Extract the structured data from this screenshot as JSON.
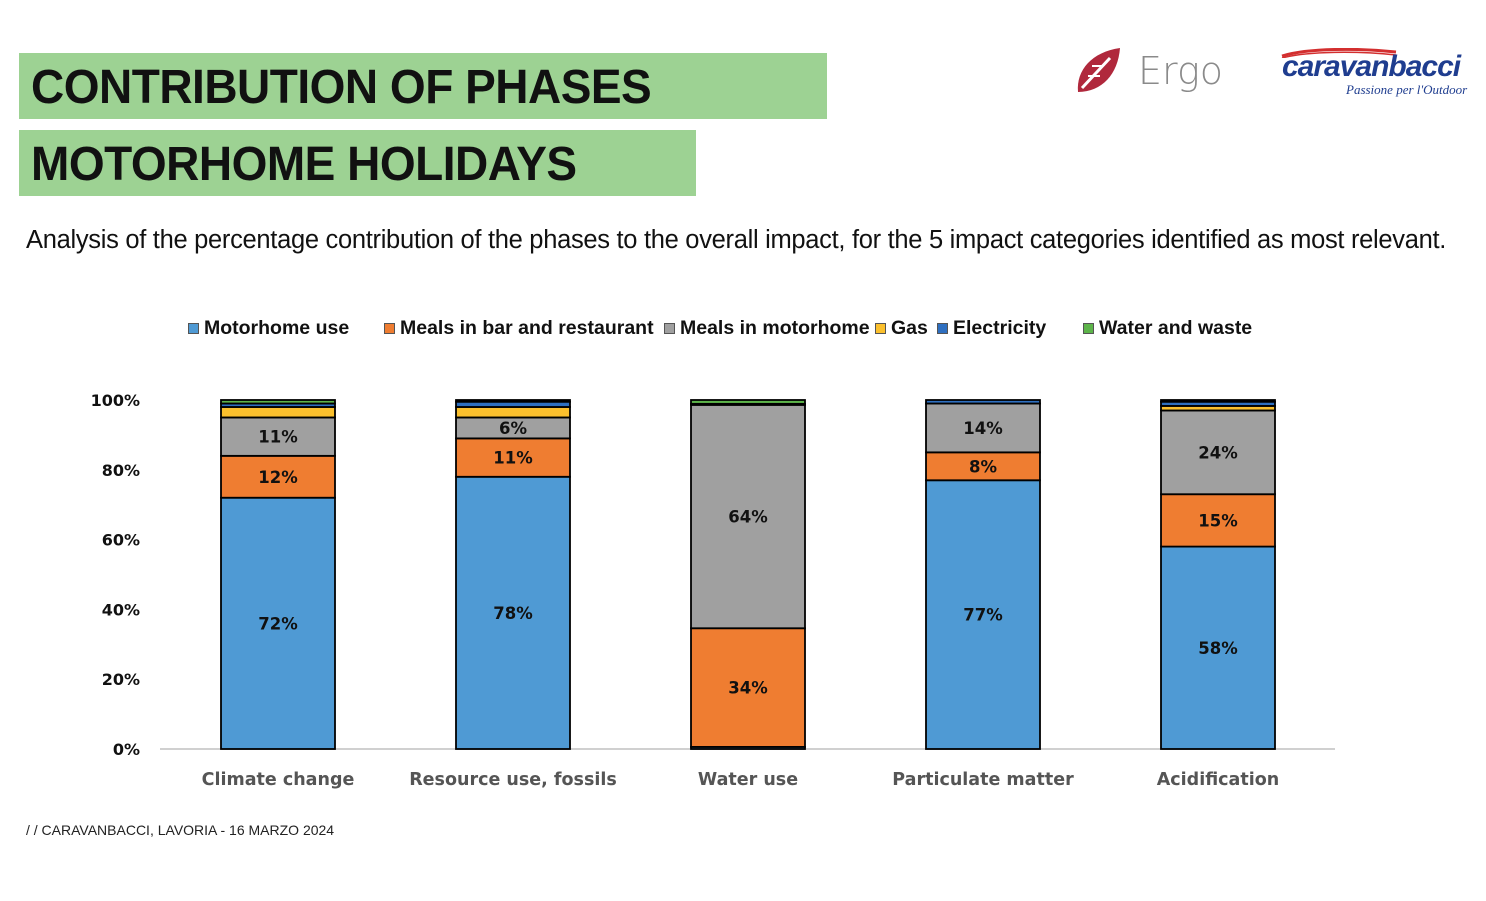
{
  "header": {
    "title_line1": "CONTRIBUTION OF PHASES",
    "title_line2": "MOTORHOME HOLIDAYS",
    "subtitle": "Analysis of the percentage contribution of the phases to the overall impact, for the 5 impact categories identified as most relevant."
  },
  "logos": {
    "ergo": "Ergo",
    "caravanbacci": "caravanbacci",
    "caravanbacci_tagline": "Passione per l'Outdoor"
  },
  "footer": {
    "text": "/ /  CARAVANBACCI, LAVORIA - 16 MARZO 2024"
  },
  "colors": {
    "title_band": "#9dd293",
    "motorhome_use": "#4f9ad4",
    "meals_bar": "#ef7d31",
    "meals_motorhome": "#a0a0a0",
    "gas": "#fbc02d",
    "electricity": "#2e6fc0",
    "water_waste": "#5db44a"
  },
  "chart_data": {
    "type": "bar",
    "stacked": true,
    "title": "",
    "xlabel": "",
    "ylabel": "",
    "ylim": [
      0,
      100
    ],
    "yticks": [
      "0%",
      "20%",
      "40%",
      "60%",
      "80%",
      "100%"
    ],
    "categories": [
      "Climate change",
      "Resource use, fossils",
      "Water use",
      "Particulate matter",
      "Acidification"
    ],
    "legend_position": "top",
    "series": [
      {
        "name": "Motorhome use",
        "color": "#4f9ad4",
        "values": [
          72,
          78,
          0.6,
          77,
          58
        ],
        "labels": [
          "72%",
          "78%",
          "",
          "77%",
          "58%"
        ]
      },
      {
        "name": "Meals in bar and restaurant",
        "color": "#ef7d31",
        "values": [
          12,
          11,
          34,
          8,
          15
        ],
        "labels": [
          "12%",
          "11%",
          "34%",
          "8%",
          "15%"
        ]
      },
      {
        "name": "Meals in motorhome",
        "color": "#a0a0a0",
        "values": [
          11,
          6,
          64,
          14,
          24
        ],
        "labels": [
          "11%",
          "6%",
          "64%",
          "14%",
          "24%"
        ]
      },
      {
        "name": "Gas",
        "color": "#fbc02d",
        "values": [
          3,
          3,
          0,
          0,
          1.3
        ],
        "labels": [
          "",
          "",
          "",
          "",
          ""
        ]
      },
      {
        "name": "Electricity",
        "color": "#2e6fc0",
        "values": [
          1,
          1.5,
          0.3,
          1,
          1.2
        ],
        "labels": [
          "",
          "",
          "",
          "",
          ""
        ]
      },
      {
        "name": "Water and waste",
        "color": "#5db44a",
        "values": [
          1,
          0.5,
          1.1,
          0,
          0.5
        ],
        "labels": [
          "",
          "",
          "",
          "",
          ""
        ]
      }
    ]
  }
}
